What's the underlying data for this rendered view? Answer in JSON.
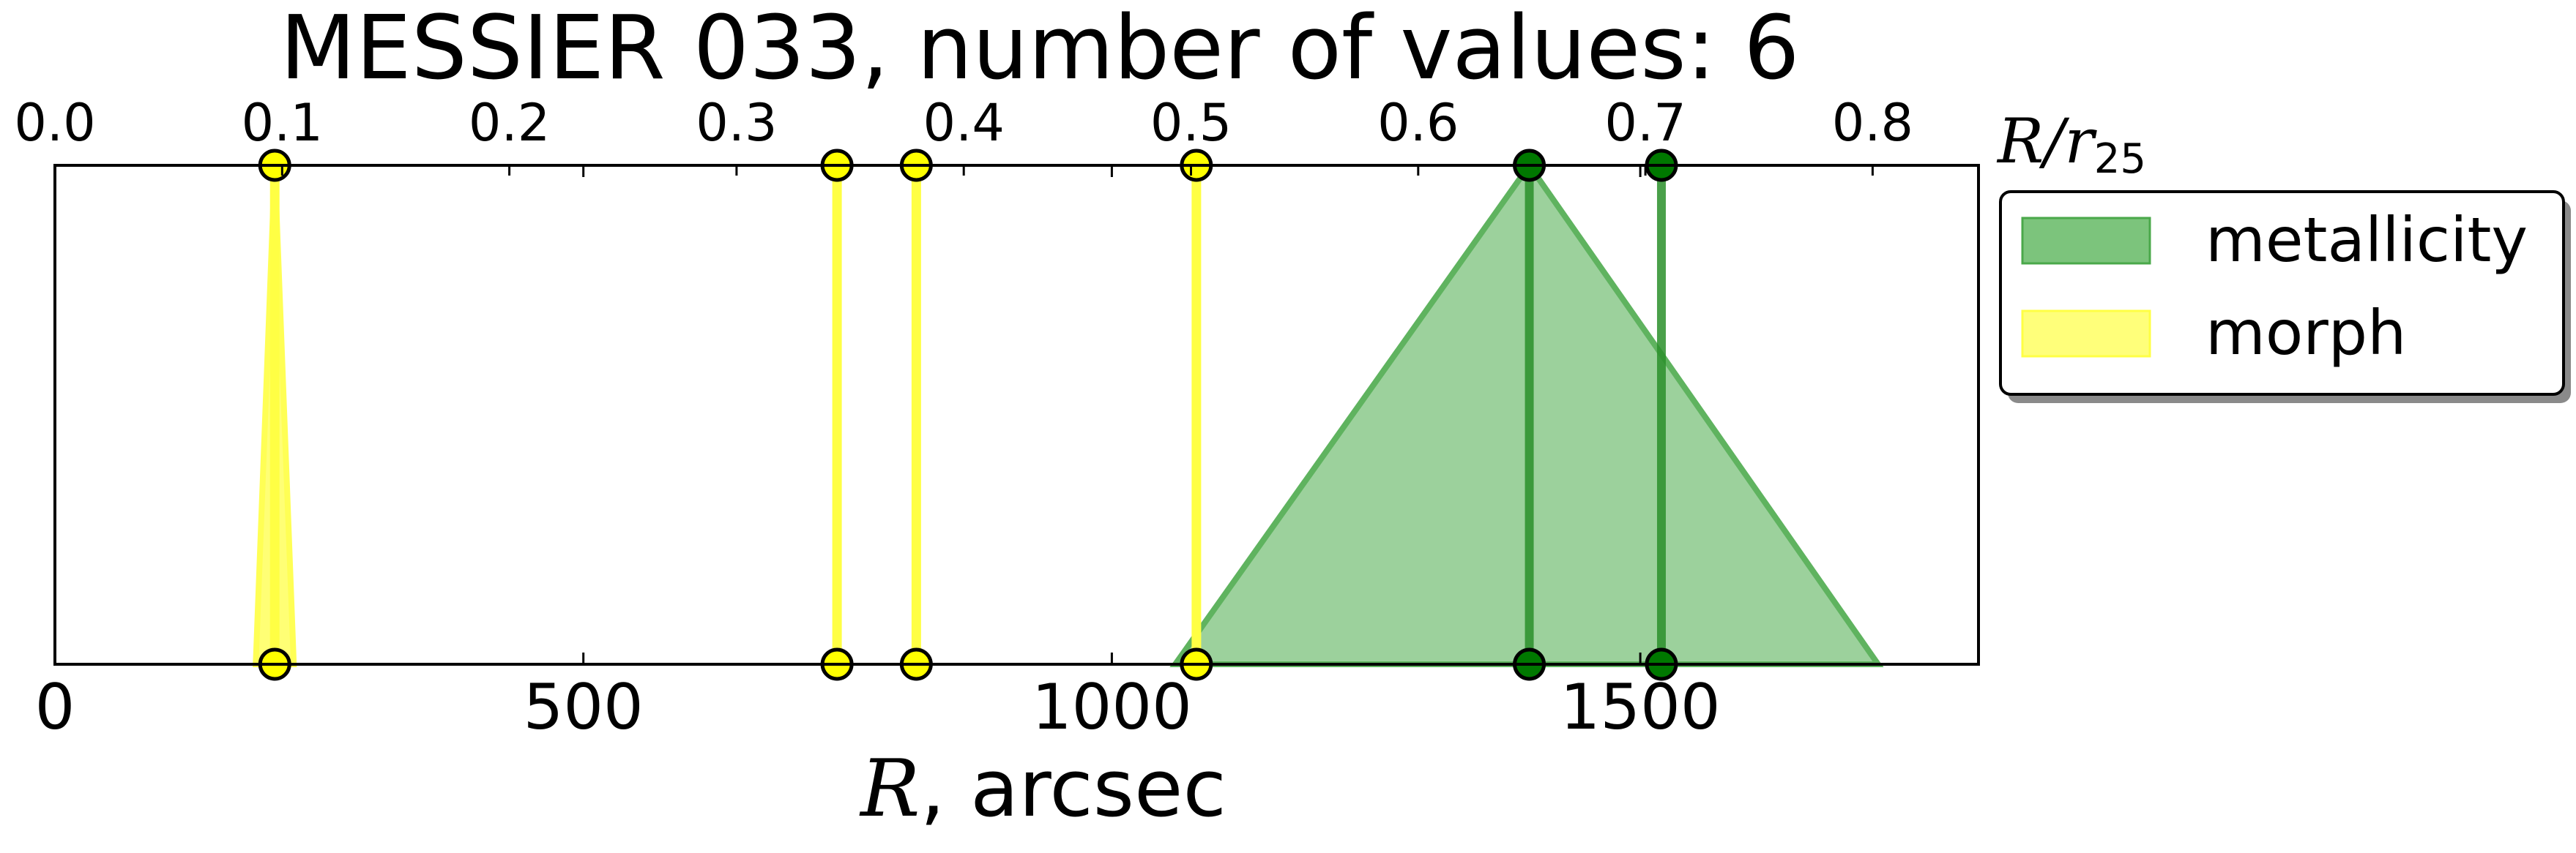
{
  "chart_data": {
    "type": "scatter",
    "title": "MESSIER 033, number of values: 6",
    "x_axis": {
      "label_symbol": "R",
      "label_text": ", arcsec",
      "range": [
        0,
        1820
      ],
      "ticks": [
        0,
        500,
        1000,
        1500
      ],
      "tick_labels": [
        "0",
        "500",
        "1000",
        "1500"
      ]
    },
    "top_axis": {
      "label": "R/r25",
      "label_symbol": "R/r",
      "label_subscript": "25",
      "range": [
        0,
        0.8466
      ],
      "ticks": [
        0.0,
        0.1,
        0.2,
        0.3,
        0.4,
        0.5,
        0.6,
        0.7,
        0.8
      ],
      "tick_labels": [
        "0.0",
        "0.1",
        "0.2",
        "0.3",
        "0.4",
        "0.5",
        "0.6",
        "0.7",
        "0.8"
      ]
    },
    "y_range": [
      0,
      1
    ],
    "grid": false,
    "legend": {
      "placement": "right-outside",
      "entries": [
        {
          "name": "metallicity",
          "color": "#2e9c2e"
        },
        {
          "name": "morph",
          "color": "#ffff33"
        }
      ]
    },
    "series": [
      {
        "name": "metallicity",
        "color": "#2e9c2e",
        "fill_color": "#8bc98b",
        "marker_color": "#007800",
        "values_arcsec": [
          1395,
          1520
        ],
        "triangle": {
          "base_start": 1060,
          "base_end": 1725,
          "apex": 1395
        }
      },
      {
        "name": "morph",
        "color": "#ffff33",
        "fill_color": "#ffff66",
        "marker_color": "#ffff00",
        "values_arcsec": [
          208,
          740,
          815,
          1080
        ],
        "triangle": {
          "base_start": 190,
          "base_end": 226,
          "apex": 208
        }
      }
    ]
  }
}
